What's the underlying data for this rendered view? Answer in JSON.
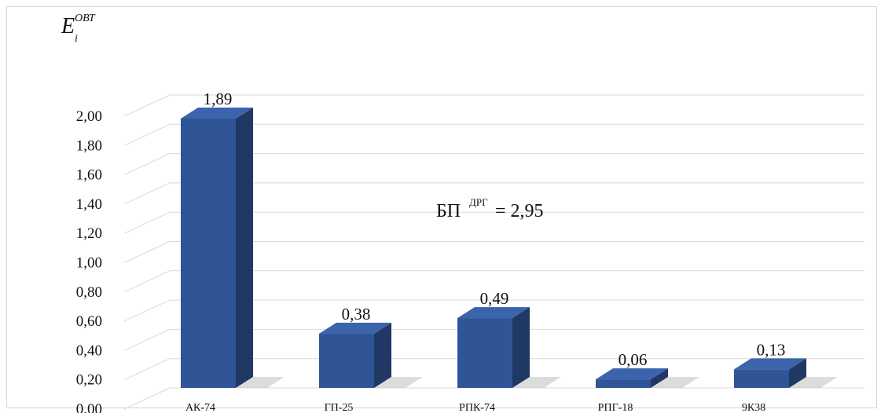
{
  "chart_data": {
    "type": "bar",
    "style": "3d-column",
    "categories": [
      "АК-74",
      "ГП-25",
      "РПК-74",
      "РПГ-18",
      "9К38"
    ],
    "values": [
      1.89,
      0.38,
      0.49,
      0.06,
      0.13
    ],
    "data_labels": [
      "1,89",
      "0,38",
      "0,49",
      "0,06",
      "0,13"
    ],
    "ylim": [
      0,
      2.0
    ],
    "yticks": [
      "0,00",
      "0,20",
      "0,40",
      "0,60",
      "0,80",
      "1,00",
      "1,20",
      "1,40",
      "1,60",
      "1,80",
      "2,00"
    ],
    "ylabel": {
      "main": "E",
      "sub": "i",
      "sup": "ОВТ"
    },
    "annotation": {
      "main": "БП",
      "sup": "ДРГ",
      "value": " = 2,95"
    },
    "grid": true,
    "legend": "none",
    "colors": {
      "bar_front": "#2f5597",
      "bar_side": "#1f3864",
      "bar_top": "#3c64ad",
      "grid": "#d9d9d9"
    }
  }
}
